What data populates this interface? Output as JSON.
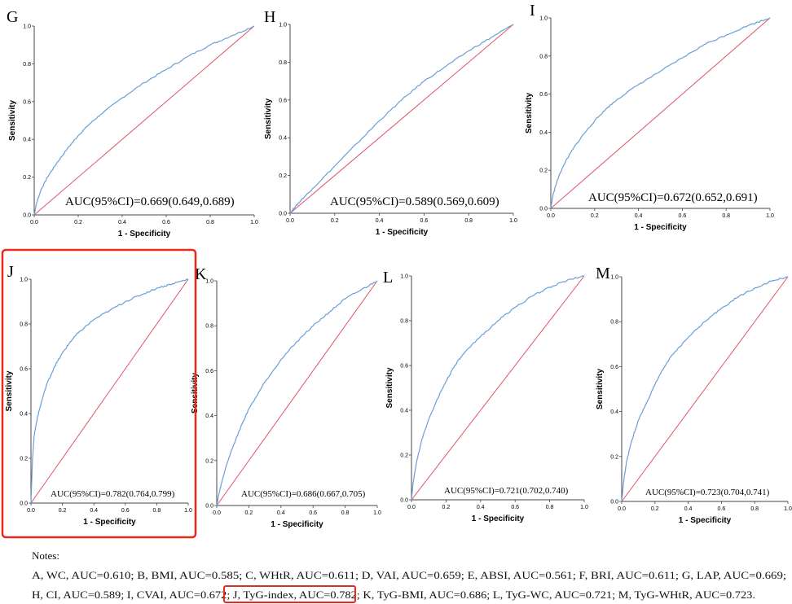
{
  "chart_data": [
    {
      "panel": "G",
      "type": "line",
      "xlabel": "1 - Specificity",
      "ylabel": "Sensitivity",
      "xticks": [
        "0.0",
        "0.2",
        "0.4",
        "0.6",
        "0.8",
        "1.0"
      ],
      "yticks": [
        "0.0",
        "0.2",
        "0.4",
        "0.6",
        "0.8",
        "1.0"
      ],
      "xlim": [
        0,
        1
      ],
      "ylim": [
        0,
        1
      ],
      "auc_text": "AUC(95%CI)=0.669(0.649,0.689)",
      "roc": {
        "x": [
          0,
          0.01,
          0.03,
          0.06,
          0.1,
          0.15,
          0.2,
          0.25,
          0.3,
          0.4,
          0.5,
          0.6,
          0.7,
          0.8,
          0.9,
          1
        ],
        "y": [
          0,
          0.06,
          0.13,
          0.2,
          0.27,
          0.35,
          0.42,
          0.48,
          0.53,
          0.62,
          0.7,
          0.77,
          0.84,
          0.9,
          0.95,
          1
        ]
      }
    },
    {
      "panel": "H",
      "type": "line",
      "xlabel": "1 - Specificity",
      "ylabel": "Sensitivity",
      "xticks": [
        "0.0",
        "0.2",
        "0.4",
        "0.6",
        "0.8",
        "1.0"
      ],
      "yticks": [
        "0.0",
        "0.2",
        "0.4",
        "0.6",
        "0.8",
        "1.0"
      ],
      "xlim": [
        0,
        1
      ],
      "ylim": [
        0,
        1
      ],
      "auc_text": "AUC(95%CI)=0.589(0.569,0.609)",
      "roc": {
        "x": [
          0,
          0.02,
          0.05,
          0.1,
          0.2,
          0.3,
          0.4,
          0.5,
          0.6,
          0.7,
          0.8,
          0.9,
          1
        ],
        "y": [
          0,
          0.03,
          0.07,
          0.13,
          0.25,
          0.37,
          0.49,
          0.6,
          0.7,
          0.78,
          0.86,
          0.93,
          1
        ]
      }
    },
    {
      "panel": "I",
      "type": "line",
      "xlabel": "1 - Specificity",
      "ylabel": "Sensitivity",
      "xticks": [
        "0.0",
        "0.2",
        "0.4",
        "0.6",
        "0.8",
        "1.0"
      ],
      "yticks": [
        "0.0",
        "0.2",
        "0.4",
        "0.6",
        "0.8",
        "1.0"
      ],
      "xlim": [
        0,
        1
      ],
      "ylim": [
        0,
        1
      ],
      "auc_text": "AUC(95%CI)=0.672(0.652,0.691)",
      "roc": {
        "x": [
          0,
          0.01,
          0.03,
          0.06,
          0.1,
          0.15,
          0.2,
          0.25,
          0.3,
          0.4,
          0.5,
          0.6,
          0.7,
          0.8,
          0.9,
          1
        ],
        "y": [
          0,
          0.07,
          0.15,
          0.23,
          0.31,
          0.39,
          0.46,
          0.52,
          0.57,
          0.65,
          0.72,
          0.79,
          0.86,
          0.91,
          0.96,
          1
        ]
      }
    },
    {
      "panel": "J",
      "type": "line",
      "xlabel": "1 - Specificity",
      "ylabel": "Sensitivity",
      "xticks": [
        "0.0",
        "0.2",
        "0.4",
        "0.6",
        "0.8",
        "1.0"
      ],
      "yticks": [
        "0.0",
        "0.2",
        "0.4",
        "0.6",
        "0.8",
        "1.0"
      ],
      "xlim": [
        0,
        1
      ],
      "ylim": [
        0,
        1
      ],
      "auc_text": "AUC(95%CI)=0.782(0.764,0.799)",
      "roc": {
        "x": [
          0,
          0.005,
          0.01,
          0.02,
          0.04,
          0.07,
          0.1,
          0.15,
          0.2,
          0.25,
          0.3,
          0.4,
          0.5,
          0.6,
          0.7,
          0.8,
          0.9,
          1
        ],
        "y": [
          0,
          0.1,
          0.2,
          0.3,
          0.38,
          0.46,
          0.53,
          0.61,
          0.67,
          0.72,
          0.76,
          0.82,
          0.86,
          0.9,
          0.93,
          0.96,
          0.98,
          1
        ]
      }
    },
    {
      "panel": "K",
      "type": "line",
      "xlabel": "1 - Specificity",
      "ylabel": "Sensitivity",
      "xticks": [
        "0.0",
        "0.2",
        "0.4",
        "0.6",
        "0.8",
        "1.0"
      ],
      "yticks": [
        "0.0",
        "0.2",
        "0.4",
        "0.6",
        "0.8",
        "1.0"
      ],
      "xlim": [
        0,
        1
      ],
      "ylim": [
        0,
        1
      ],
      "auc_text": "AUC(95%CI)=0.686(0.667,0.705)",
      "roc": {
        "x": [
          0,
          0.01,
          0.03,
          0.06,
          0.1,
          0.15,
          0.2,
          0.3,
          0.4,
          0.5,
          0.6,
          0.7,
          0.8,
          0.9,
          1
        ],
        "y": [
          0,
          0.04,
          0.1,
          0.18,
          0.26,
          0.35,
          0.43,
          0.55,
          0.65,
          0.73,
          0.8,
          0.86,
          0.92,
          0.96,
          1
        ]
      }
    },
    {
      "panel": "L",
      "type": "line",
      "xlabel": "1 - Specificity",
      "ylabel": "Sensitivity",
      "xticks": [
        "0.0",
        "0.2",
        "0.4",
        "0.6",
        "0.8",
        "1.0"
      ],
      "yticks": [
        "0.0",
        "0.2",
        "0.4",
        "0.6",
        "0.8",
        "1.0"
      ],
      "xlim": [
        0,
        1
      ],
      "ylim": [
        0,
        1
      ],
      "auc_text": "AUC(95%CI)=0.721(0.702,0.740)",
      "roc": {
        "x": [
          0,
          0.01,
          0.03,
          0.06,
          0.1,
          0.15,
          0.2,
          0.25,
          0.3,
          0.4,
          0.5,
          0.6,
          0.7,
          0.8,
          0.9,
          1
        ],
        "y": [
          0,
          0.08,
          0.17,
          0.27,
          0.36,
          0.45,
          0.53,
          0.6,
          0.65,
          0.73,
          0.8,
          0.86,
          0.91,
          0.95,
          0.98,
          1
        ]
      }
    },
    {
      "panel": "M",
      "type": "line",
      "xlabel": "1 - Specificity",
      "ylabel": "Sensitivity",
      "xticks": [
        "0.0",
        "0.2",
        "0.4",
        "0.6",
        "0.8",
        "1.0"
      ],
      "yticks": [
        "0.0",
        "0.2",
        "0.4",
        "0.6",
        "0.8",
        "1.0"
      ],
      "xlim": [
        0,
        1
      ],
      "ylim": [
        0,
        1
      ],
      "auc_text": "AUC(95%CI)=0.723(0.704,0.741)",
      "roc": {
        "x": [
          0,
          0.01,
          0.03,
          0.06,
          0.1,
          0.15,
          0.2,
          0.25,
          0.3,
          0.4,
          0.5,
          0.6,
          0.7,
          0.8,
          0.9,
          1
        ],
        "y": [
          0,
          0.08,
          0.18,
          0.27,
          0.36,
          0.44,
          0.52,
          0.59,
          0.65,
          0.73,
          0.8,
          0.86,
          0.91,
          0.95,
          0.98,
          1
        ]
      }
    }
  ],
  "colors": {
    "roc_line": "#6a9fd6",
    "reference_line": "#e0536b",
    "highlight": "#e8291c"
  },
  "notes": {
    "title": "Notes:",
    "line1": "A, WC, AUC=0.610; B, BMI, AUC=0.585; C, WHtR, AUC=0.611; D, VAI, AUC=0.659; E, ABSI, AUC=0.561; F, BRI, AUC=0.611; G, LAP, AUC=0.669;",
    "line2_before": "H, CI, AUC=0.589; I, CVAI, AUC=0.672; ",
    "line2_highlight": "J, TyG-index, AUC=0.782;",
    "line2_after": " K, TyG-BMI, AUC=0.686; L, TyG-WC, AUC=0.721; M, TyG-WHtR, AUC=0.723."
  }
}
